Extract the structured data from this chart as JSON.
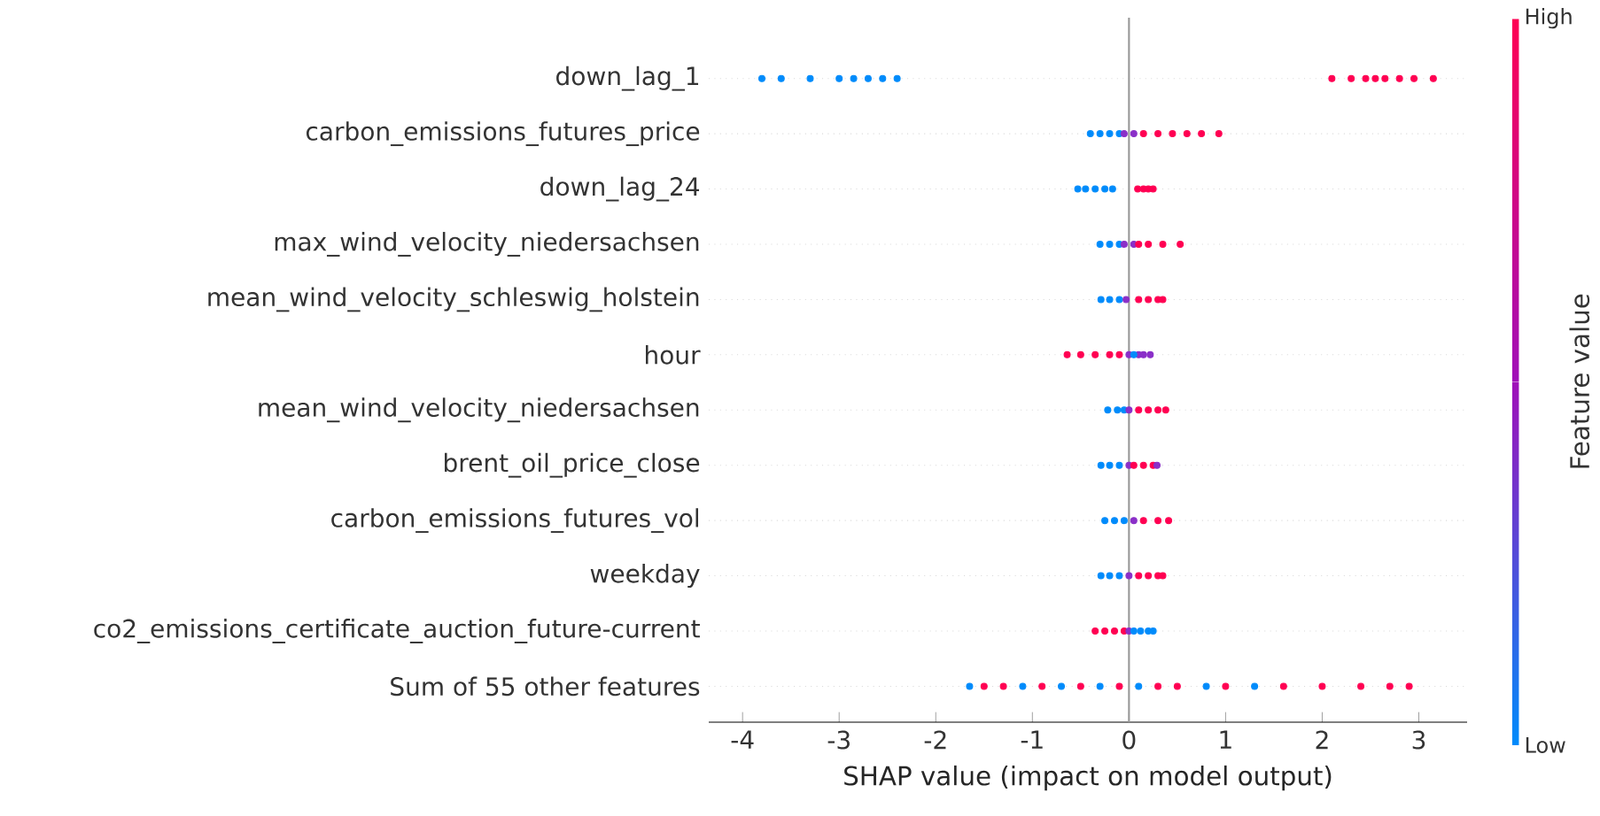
{
  "chart_data": {
    "type": "scatter",
    "orientation": "horizontal",
    "xlabel": "SHAP value (impact on model output)",
    "clabel": "Feature value",
    "annotations": [
      "High",
      "Low"
    ],
    "categories": [
      "down_lag_1",
      "carbon_emissions_futures_price",
      "down_lag_24",
      "max_wind_velocity_niedersachsen",
      "mean_wind_velocity_schleswig_holstein",
      "hour",
      "mean_wind_velocity_niedersachsen",
      "brent_oil_price_close",
      "carbon_emissions_futures_vol",
      "weekday",
      "co2_emissions_certificate_auction_future-current",
      "Sum of 55 other features"
    ],
    "xlim": [
      -4.35,
      3.5
    ],
    "xticks": [
      -4,
      -3,
      -2,
      -1,
      0,
      1,
      2,
      3
    ],
    "grid": "y",
    "marker": "circle",
    "ref_lines": [
      {
        "axis": "x",
        "value": 0,
        "color": "#999999"
      }
    ],
    "series": [
      {
        "x": [
          "down_lag_1",
          "down_lag_1",
          "down_lag_1",
          "down_lag_1",
          "down_lag_1",
          "down_lag_1",
          "down_lag_1",
          "down_lag_1",
          "down_lag_1",
          "down_lag_1",
          "down_lag_1",
          "down_lag_1",
          "down_lag_1",
          "down_lag_1",
          "down_lag_1",
          "down_lag_1"
        ],
        "values": [
          -3.8,
          -3.6,
          -3.3,
          -3.0,
          -2.85,
          -2.7,
          -2.55,
          -2.4,
          2.1,
          2.3,
          2.45,
          2.55,
          2.65,
          2.8,
          2.95,
          3.15
        ],
        "colors": [
          "#008bfb",
          "#008bfb",
          "#008bfb",
          "#008bfb",
          "#008bfb",
          "#008bfb",
          "#008bfb",
          "#008bfb",
          "#ff0052",
          "#ff0052",
          "#ff0052",
          "#ff0052",
          "#ff0052",
          "#ff0052",
          "#ff0052",
          "#ff0052"
        ]
      },
      {
        "x": [
          "carbon_emissions_futures_price",
          "carbon_emissions_futures_price",
          "carbon_emissions_futures_price",
          "carbon_emissions_futures_price",
          "carbon_emissions_futures_price",
          "carbon_emissions_futures_price",
          "carbon_emissions_futures_price",
          "carbon_emissions_futures_price",
          "carbon_emissions_futures_price",
          "carbon_emissions_futures_price",
          "carbon_emissions_futures_price",
          "carbon_emissions_futures_price"
        ],
        "values": [
          -0.4,
          -0.3,
          -0.2,
          -0.1,
          -0.05,
          0.05,
          0.15,
          0.3,
          0.45,
          0.6,
          0.75,
          0.93
        ],
        "colors": [
          "#008bfb",
          "#008bfb",
          "#008bfb",
          "#008bfb",
          "#8a2fc8",
          "#8a2fc8",
          "#ff0052",
          "#ff0052",
          "#ff0052",
          "#ff0052",
          "#ff0052",
          "#ff0052"
        ]
      },
      {
        "x": [
          "down_lag_24",
          "down_lag_24",
          "down_lag_24",
          "down_lag_24",
          "down_lag_24",
          "down_lag_24",
          "down_lag_24",
          "down_lag_24",
          "down_lag_24"
        ],
        "values": [
          -0.53,
          -0.45,
          -0.35,
          -0.25,
          -0.17,
          0.09,
          0.15,
          0.2,
          0.25
        ],
        "colors": [
          "#008bfb",
          "#008bfb",
          "#008bfb",
          "#008bfb",
          "#008bfb",
          "#ff0052",
          "#ff0052",
          "#ff0052",
          "#ff0052"
        ]
      },
      {
        "x": [
          "max_wind_velocity_niedersachsen",
          "max_wind_velocity_niedersachsen",
          "max_wind_velocity_niedersachsen",
          "max_wind_velocity_niedersachsen",
          "max_wind_velocity_niedersachsen",
          "max_wind_velocity_niedersachsen",
          "max_wind_velocity_niedersachsen",
          "max_wind_velocity_niedersachsen",
          "max_wind_velocity_niedersachsen"
        ],
        "values": [
          -0.3,
          -0.2,
          -0.1,
          -0.05,
          0.05,
          0.1,
          0.2,
          0.35,
          0.53
        ],
        "colors": [
          "#008bfb",
          "#008bfb",
          "#008bfb",
          "#8a2fc8",
          "#8a2fc8",
          "#ff0052",
          "#ff0052",
          "#ff0052",
          "#ff0052"
        ]
      },
      {
        "x": [
          "mean_wind_velocity_schleswig_holstein",
          "mean_wind_velocity_schleswig_holstein",
          "mean_wind_velocity_schleswig_holstein",
          "mean_wind_velocity_schleswig_holstein",
          "mean_wind_velocity_schleswig_holstein",
          "mean_wind_velocity_schleswig_holstein",
          "mean_wind_velocity_schleswig_holstein",
          "mean_wind_velocity_schleswig_holstein"
        ],
        "values": [
          -0.29,
          -0.2,
          -0.1,
          -0.03,
          0.1,
          0.2,
          0.3,
          0.35
        ],
        "colors": [
          "#008bfb",
          "#008bfb",
          "#008bfb",
          "#8a2fc8",
          "#ff0052",
          "#ff0052",
          "#ff0052",
          "#ff0052"
        ]
      },
      {
        "x": [
          "hour",
          "hour",
          "hour",
          "hour",
          "hour",
          "hour",
          "hour",
          "hour",
          "hour",
          "hour"
        ],
        "values": [
          -0.64,
          -0.5,
          -0.35,
          -0.2,
          -0.1,
          0,
          0.1,
          0.05,
          0.15,
          0.22
        ],
        "colors": [
          "#ff0052",
          "#ff0052",
          "#ff0052",
          "#ff0052",
          "#ff0052",
          "#8a2fc8",
          "#8a2fc8",
          "#008bfb",
          "#8a2fc8",
          "#8a2fc8"
        ]
      },
      {
        "x": [
          "mean_wind_velocity_niedersachsen",
          "mean_wind_velocity_niedersachsen",
          "mean_wind_velocity_niedersachsen",
          "mean_wind_velocity_niedersachsen",
          "mean_wind_velocity_niedersachsen",
          "mean_wind_velocity_niedersachsen",
          "mean_wind_velocity_niedersachsen",
          "mean_wind_velocity_niedersachsen"
        ],
        "values": [
          -0.22,
          -0.12,
          -0.05,
          0,
          0.1,
          0.2,
          0.3,
          0.38
        ],
        "colors": [
          "#008bfb",
          "#008bfb",
          "#008bfb",
          "#8a2fc8",
          "#ff0052",
          "#ff0052",
          "#ff0052",
          "#ff0052"
        ]
      },
      {
        "x": [
          "brent_oil_price_close",
          "brent_oil_price_close",
          "brent_oil_price_close",
          "brent_oil_price_close",
          "brent_oil_price_close",
          "brent_oil_price_close",
          "brent_oil_price_close",
          "brent_oil_price_close"
        ],
        "values": [
          -0.29,
          -0.2,
          -0.1,
          0,
          0.05,
          0.15,
          0.25,
          0.29
        ],
        "colors": [
          "#008bfb",
          "#008bfb",
          "#008bfb",
          "#8a2fc8",
          "#ff0052",
          "#ff0052",
          "#ff0052",
          "#8a2fc8"
        ]
      },
      {
        "x": [
          "carbon_emissions_futures_vol",
          "carbon_emissions_futures_vol",
          "carbon_emissions_futures_vol",
          "carbon_emissions_futures_vol",
          "carbon_emissions_futures_vol",
          "carbon_emissions_futures_vol",
          "carbon_emissions_futures_vol"
        ],
        "values": [
          -0.25,
          -0.15,
          -0.05,
          0.05,
          0.15,
          0.3,
          0.41
        ],
        "colors": [
          "#008bfb",
          "#008bfb",
          "#008bfb",
          "#8a2fc8",
          "#ff0052",
          "#ff0052",
          "#ff0052"
        ]
      },
      {
        "x": [
          "weekday",
          "weekday",
          "weekday",
          "weekday",
          "weekday",
          "weekday",
          "weekday",
          "weekday"
        ],
        "values": [
          -0.29,
          -0.2,
          -0.1,
          0,
          0.1,
          0.2,
          0.3,
          0.35
        ],
        "colors": [
          "#008bfb",
          "#008bfb",
          "#008bfb",
          "#8a2fc8",
          "#ff0052",
          "#ff0052",
          "#ff0052",
          "#ff0052"
        ]
      },
      {
        "x": [
          "co2_emissions_certificate_auction_future-current",
          "co2_emissions_certificate_auction_future-current",
          "co2_emissions_certificate_auction_future-current",
          "co2_emissions_certificate_auction_future-current",
          "co2_emissions_certificate_auction_future-current",
          "co2_emissions_certificate_auction_future-current",
          "co2_emissions_certificate_auction_future-current",
          "co2_emissions_certificate_auction_future-current",
          "co2_emissions_certificate_auction_future-current"
        ],
        "values": [
          -0.35,
          -0.25,
          -0.15,
          -0.05,
          0,
          0.05,
          0.12,
          0.2,
          0.25
        ],
        "colors": [
          "#ff0052",
          "#ff0052",
          "#ff0052",
          "#ff0052",
          "#8a2fc8",
          "#008bfb",
          "#008bfb",
          "#008bfb",
          "#008bfb"
        ]
      },
      {
        "x": [
          "Sum of 55 other features",
          "Sum of 55 other features",
          "Sum of 55 other features",
          "Sum of 55 other features",
          "Sum of 55 other features",
          "Sum of 55 other features",
          "Sum of 55 other features",
          "Sum of 55 other features",
          "Sum of 55 other features",
          "Sum of 55 other features",
          "Sum of 55 other features",
          "Sum of 55 other features",
          "Sum of 55 other features",
          "Sum of 55 other features",
          "Sum of 55 other features",
          "Sum of 55 other features",
          "Sum of 55 other features",
          "Sum of 55 other features",
          "Sum of 55 other features",
          "Sum of 55 other features"
        ],
        "values": [
          -1.65,
          -1.5,
          -1.3,
          -1.1,
          -0.9,
          -0.7,
          -0.5,
          -0.3,
          -0.1,
          0.1,
          0.3,
          0.5,
          0.8,
          1.0,
          1.3,
          1.6,
          2.0,
          2.4,
          2.7,
          2.9
        ],
        "colors": [
          "#008bfb",
          "#ff0052",
          "#ff0052",
          "#008bfb",
          "#ff0052",
          "#008bfb",
          "#ff0052",
          "#008bfb",
          "#ff0052",
          "#008bfb",
          "#ff0052",
          "#ff0052",
          "#008bfb",
          "#ff0052",
          "#008bfb",
          "#ff0052",
          "#ff0052",
          "#ff0052",
          "#ff0052",
          "#ff0052"
        ]
      }
    ]
  }
}
